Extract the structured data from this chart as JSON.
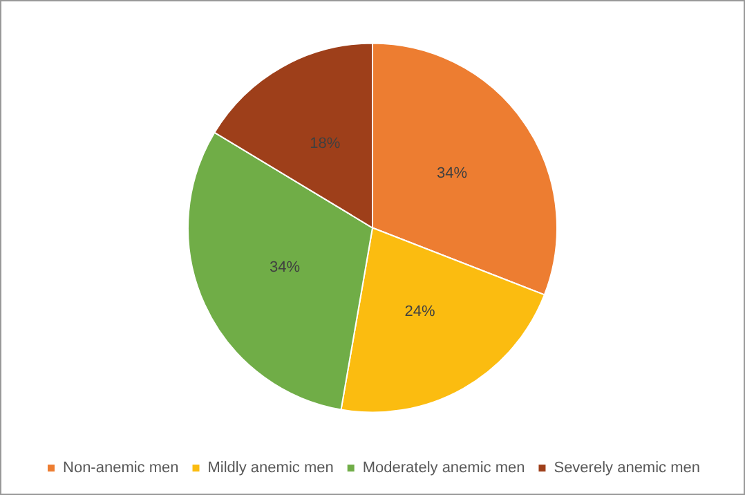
{
  "chart_data": {
    "type": "pie",
    "categories": [
      "Non-anemic men",
      "Mildly anemic men",
      "Moderately anemic men",
      "Severely anemic men"
    ],
    "values": [
      34,
      24,
      34,
      18
    ],
    "value_labels": [
      "34%",
      "24%",
      "34%",
      "18%"
    ],
    "colors": [
      "#ed7d31",
      "#fbbc10",
      "#70ad47",
      "#9e3f1a"
    ],
    "legend": "bottom"
  }
}
